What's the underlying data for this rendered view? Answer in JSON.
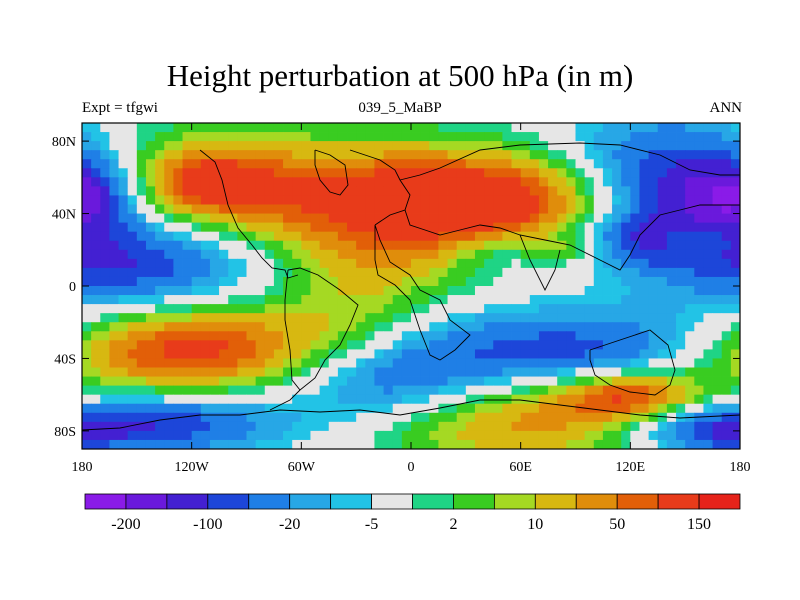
{
  "title": "Height perturbation at 500 hPa (in m)",
  "subtitle_left": "Expt = tfgwi",
  "subtitle_center": "039_5_MaBP",
  "subtitle_right": "ANN",
  "chart_data": {
    "type": "heatmap",
    "title": "Height perturbation at 500 hPa (in m)",
    "xlim": [
      -180,
      180
    ],
    "ylim": [
      -90,
      90
    ],
    "x_ticks": [
      {
        "v": -180,
        "label": "180"
      },
      {
        "v": -120,
        "label": "120W"
      },
      {
        "v": -60,
        "label": "60W"
      },
      {
        "v": 0,
        "label": "0"
      },
      {
        "v": 60,
        "label": "60E"
      },
      {
        "v": 120,
        "label": "120E"
      },
      {
        "v": 180,
        "label": "180"
      }
    ],
    "y_ticks": [
      {
        "v": 80,
        "label": "80N"
      },
      {
        "v": 40,
        "label": "40N"
      },
      {
        "v": 0,
        "label": "0"
      },
      {
        "v": -40,
        "label": "40S"
      },
      {
        "v": -80,
        "label": "80S"
      }
    ],
    "colorbar": {
      "colors": [
        "#8a1be8",
        "#6a19dc",
        "#4320d2",
        "#1d46d9",
        "#1f7fe6",
        "#27a7e6",
        "#22c3e6",
        "#e6e6e6",
        "#1fd485",
        "#39cc21",
        "#a5d923",
        "#d7b811",
        "#e08d0b",
        "#e25f08",
        "#e83b1a",
        "#e6231a"
      ],
      "tick_labels": [
        "-200",
        "-100",
        "-20",
        "-5",
        "2",
        "10",
        "50",
        "150"
      ]
    },
    "features": [
      {
        "lon": -120,
        "lat": 55,
        "rx": 45,
        "ry": 22,
        "level": 3.2
      },
      {
        "lon": -110,
        "lat": 57,
        "rx": 20,
        "ry": 10,
        "level": 1.8
      },
      {
        "lon": -175,
        "lat": 52,
        "rx": 20,
        "ry": 14,
        "level": -2.8
      },
      {
        "lon": -20,
        "lat": 50,
        "rx": 60,
        "ry": 22,
        "level": 3.0
      },
      {
        "lon": 30,
        "lat": 40,
        "rx": 55,
        "ry": 22,
        "level": 3.0
      },
      {
        "lon": 75,
        "lat": 48,
        "rx": 40,
        "ry": 18,
        "level": 2.2
      },
      {
        "lon": 140,
        "lat": 55,
        "rx": 45,
        "ry": 25,
        "level": -4.0
      },
      {
        "lon": 125,
        "lat": 25,
        "rx": 30,
        "ry": 10,
        "level": -2.2
      },
      {
        "lon": 155,
        "lat": 25,
        "rx": 16,
        "ry": 7,
        "level": 2.0
      },
      {
        "lon": 85,
        "lat": 20,
        "rx": 18,
        "ry": 6,
        "level": 1.4
      },
      {
        "lon": 50,
        "lat": 20,
        "rx": 22,
        "ry": 10,
        "level": -1.8
      },
      {
        "lon": -150,
        "lat": 15,
        "rx": 50,
        "ry": 20,
        "level": -3.2
      },
      {
        "lon": -30,
        "lat": 0,
        "rx": 35,
        "ry": 20,
        "level": 1.6
      },
      {
        "lon": -140,
        "lat": -40,
        "rx": 55,
        "ry": 18,
        "level": 3.0
      },
      {
        "lon": -110,
        "lat": -30,
        "rx": 45,
        "ry": 15,
        "level": 2.2
      },
      {
        "lon": -30,
        "lat": -40,
        "rx": 30,
        "ry": 18,
        "level": 2.2
      },
      {
        "lon": -20,
        "lat": -50,
        "rx": 35,
        "ry": 18,
        "level": -3.6
      },
      {
        "lon": 90,
        "lat": -38,
        "rx": 65,
        "ry": 18,
        "level": -3.0
      },
      {
        "lon": 60,
        "lat": -75,
        "rx": 60,
        "ry": 18,
        "level": 3.0
      },
      {
        "lon": 120,
        "lat": -60,
        "rx": 30,
        "ry": 10,
        "level": 4.0
      },
      {
        "lon": -140,
        "lat": -75,
        "rx": 50,
        "ry": 12,
        "level": -3.2
      },
      {
        "lon": 160,
        "lat": -80,
        "rx": 30,
        "ry": 10,
        "level": -2.4
      }
    ]
  }
}
